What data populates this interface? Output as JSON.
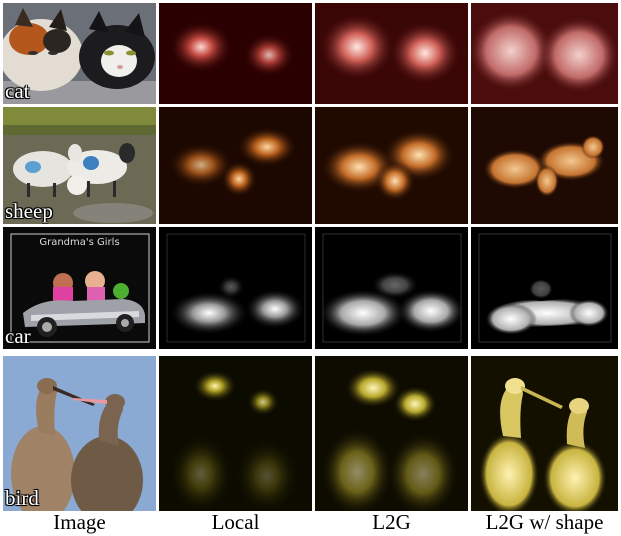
{
  "figure": {
    "columns": [
      "Image",
      "Local",
      "L2G",
      "L2G w/ shape"
    ],
    "rows": [
      {
        "label": "cat",
        "map_color": "#ff9a8a",
        "map_bg": "#2a0000"
      },
      {
        "label": "sheep",
        "map_color": "#ffb060",
        "map_bg": "#1c0800"
      },
      {
        "label": "car",
        "map_color": "#ffffff",
        "map_bg": "#000000",
        "inset_text": "Grandma's Girls"
      },
      {
        "label": "bird",
        "map_color": "#fff090",
        "map_bg": "#0c0b00"
      }
    ]
  }
}
